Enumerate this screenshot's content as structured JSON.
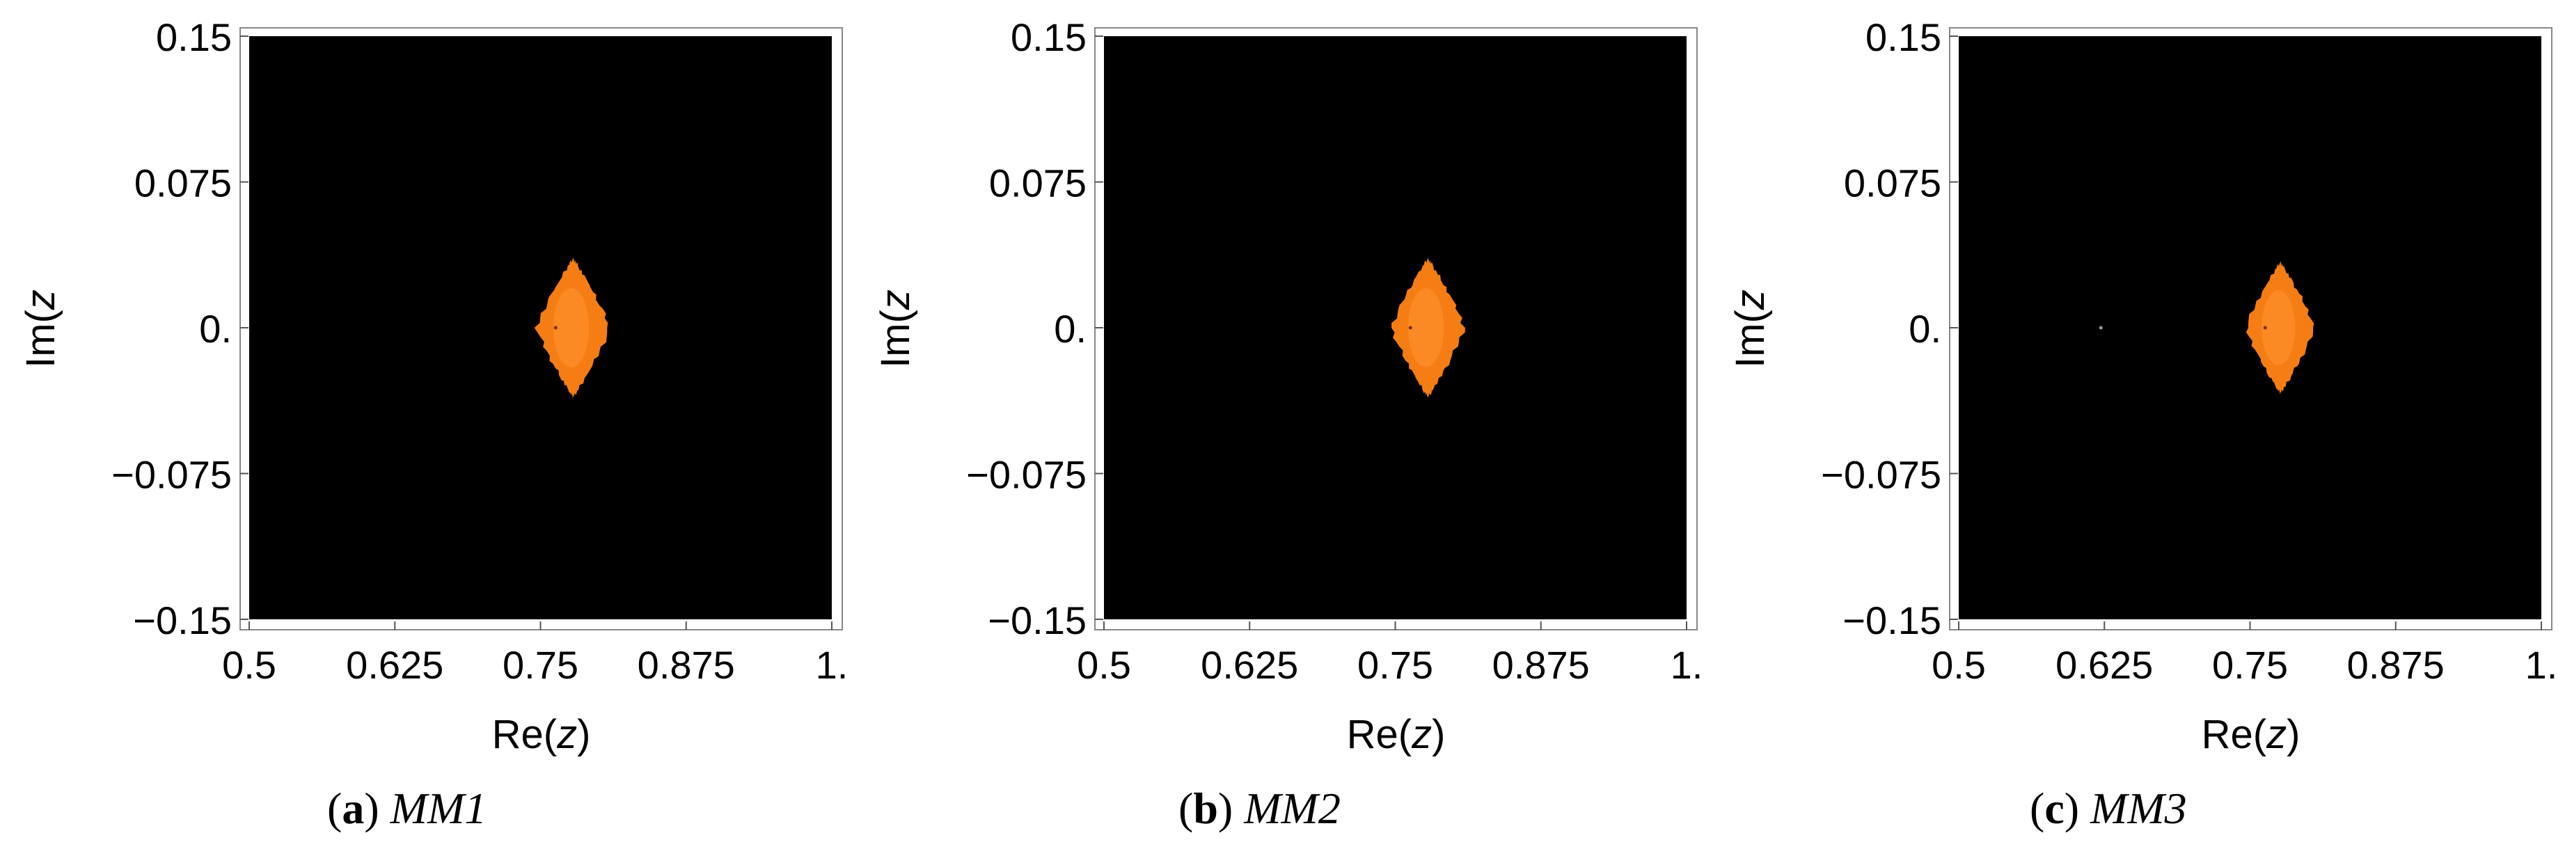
{
  "colors": {
    "background": "#000000",
    "basin": "#f57d14",
    "basin_light": "#ff9533",
    "frame": "#888888"
  },
  "charts": [
    {
      "caption_label": "a",
      "caption_name": "MM1"
    },
    {
      "caption_label": "b",
      "caption_name": "MM2"
    },
    {
      "caption_label": "c",
      "caption_name": "MM3"
    }
  ],
  "chart_data": [
    {
      "type": "heatmap",
      "xlabel_prefix": "Re(",
      "xlabel_var": "z",
      "xlabel_suffix": ")",
      "ylabel_prefix": "Im(",
      "ylabel_var": "z",
      "ylabel_suffix": "",
      "xlim": [
        0.5,
        1.0
      ],
      "ylim": [
        -0.15,
        0.15
      ],
      "xticks": [
        0.5,
        0.625,
        0.75,
        0.875,
        1.0
      ],
      "xtick_labels": [
        "0.5",
        "0.625",
        "0.75",
        "0.875",
        "1."
      ],
      "yticks": [
        0.15,
        0.075,
        0.0,
        -0.075,
        -0.15
      ],
      "ytick_labels": [
        "0.15",
        "0.075",
        "0.",
        "−0.075",
        "−0.15"
      ],
      "basin_center": [
        0.778,
        0.0
      ],
      "basin_half_width": 0.034,
      "basin_half_height": 0.037,
      "fixed_points": [
        [
          0.763,
          0.0
        ]
      ]
    },
    {
      "type": "heatmap",
      "xlabel_prefix": "Re(",
      "xlabel_var": "z",
      "xlabel_suffix": ")",
      "ylabel_prefix": "Im(",
      "ylabel_var": "z",
      "ylabel_suffix": "",
      "xlim": [
        0.5,
        1.0
      ],
      "ylim": [
        -0.15,
        0.15
      ],
      "xticks": [
        0.5,
        0.625,
        0.75,
        0.875,
        1.0
      ],
      "xtick_labels": [
        "0.5",
        "0.625",
        "0.75",
        "0.875",
        "1."
      ],
      "yticks": [
        0.15,
        0.075,
        0.0,
        -0.075,
        -0.15
      ],
      "ytick_labels": [
        "0.15",
        "0.075",
        "0.",
        "−0.075",
        "−0.15"
      ],
      "basin_center": [
        0.778,
        0.0
      ],
      "basin_half_width": 0.034,
      "basin_half_height": 0.037,
      "fixed_points": [
        [
          0.763,
          0.0
        ]
      ]
    },
    {
      "type": "heatmap",
      "xlabel_prefix": "Re(",
      "xlabel_var": "z",
      "xlabel_suffix": ")",
      "ylabel_prefix": "Im(",
      "ylabel_var": "z",
      "ylabel_suffix": "",
      "xlim": [
        0.5,
        1.0
      ],
      "ylim": [
        -0.15,
        0.15
      ],
      "xticks": [
        0.5,
        0.625,
        0.75,
        0.875,
        1.0
      ],
      "xtick_labels": [
        "0.5",
        "0.625",
        "0.75",
        "0.875",
        "1."
      ],
      "yticks": [
        0.15,
        0.075,
        0.0,
        -0.075,
        -0.15
      ],
      "ytick_labels": [
        "0.15",
        "0.075",
        "0.",
        "−0.075",
        "−0.15"
      ],
      "basin_center": [
        0.776,
        0.0
      ],
      "basin_half_width": 0.032,
      "basin_half_height": 0.035,
      "fixed_points": [
        [
          0.763,
          0.0
        ],
        [
          0.622,
          0.0
        ]
      ]
    }
  ]
}
